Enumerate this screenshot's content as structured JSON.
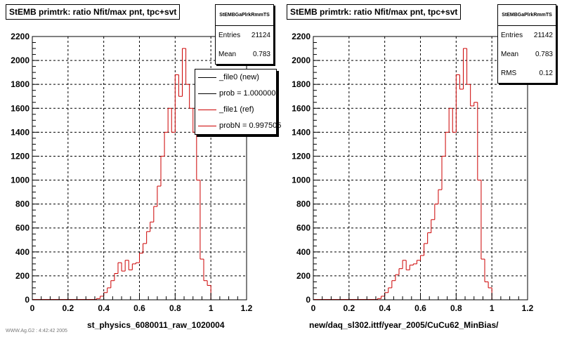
{
  "chart_data": [
    {
      "type": "histogram",
      "title": "StEMB primtrk: ratio Nfit/max pnt, tpc+svt",
      "xlabel": "st_physics_6080011_raw_1020004",
      "ylabel": "",
      "xlim": [
        0,
        1.2
      ],
      "ylim": [
        0,
        2200
      ],
      "xticks": [
        "0",
        "0.2",
        "0.4",
        "0.6",
        "0.8",
        "1",
        "1.2"
      ],
      "yticks": [
        "0",
        "200",
        "400",
        "600",
        "800",
        "1000",
        "1200",
        "1400",
        "1600",
        "1800",
        "2000",
        "2200"
      ],
      "grid": true,
      "bin_width": 0.02,
      "stats": {
        "name": "StEMBGaPlrkRmmTS",
        "entries_label": "Entries",
        "entries": "21124",
        "mean_label": "Mean",
        "mean": "0.783"
      },
      "legend": {
        "placement": "top-right",
        "items": [
          {
            "label": "_file0 (new)",
            "color": "#000000"
          },
          {
            "label": "prob = 1.000000",
            "color": "#000000"
          },
          {
            "label": "_file1 (ref)",
            "color": "#cc0000"
          },
          {
            "label": "probN = 0.997505",
            "color": "#cc0000"
          }
        ]
      },
      "series": [
        {
          "name": "_file1 (ref)",
          "color": "#cc0000",
          "x": [
            0.36,
            0.38,
            0.4,
            0.42,
            0.44,
            0.46,
            0.48,
            0.5,
            0.52,
            0.54,
            0.56,
            0.58,
            0.6,
            0.62,
            0.64,
            0.66,
            0.68,
            0.7,
            0.72,
            0.74,
            0.76,
            0.78,
            0.8,
            0.82,
            0.84,
            0.86,
            0.88,
            0.9,
            0.92,
            0.94,
            0.96,
            0.98
          ],
          "values": [
            10,
            30,
            60,
            100,
            160,
            220,
            310,
            240,
            330,
            250,
            300,
            310,
            390,
            470,
            570,
            650,
            780,
            950,
            1200,
            1400,
            1600,
            1400,
            1880,
            1700,
            2100,
            1800,
            1600,
            1400,
            1000,
            340,
            160,
            120
          ]
        }
      ]
    },
    {
      "type": "histogram",
      "title": "StEMB primtrk: ratio Nfit/max pnt, tpc+svt",
      "xlabel": "new/daq_sl302.ittf/year_2005/CuCu62_MinBias/",
      "ylabel": "",
      "xlim": [
        0,
        1.2
      ],
      "ylim": [
        0,
        2200
      ],
      "xticks": [
        "0",
        "0.2",
        "0.4",
        "0.6",
        "0.8",
        "1",
        "1.2"
      ],
      "yticks": [
        "0",
        "200",
        "400",
        "600",
        "800",
        "1000",
        "1200",
        "1400",
        "1600",
        "1800",
        "2000",
        "2200"
      ],
      "grid": true,
      "bin_width": 0.02,
      "stats": {
        "name": "StEMBGaPlrkRmmTS",
        "entries_label": "Entries",
        "entries": "21142",
        "mean_label": "Mean",
        "mean": "0.783",
        "rms_label": "RMS",
        "rms": "0.12"
      },
      "series": [
        {
          "name": "",
          "color": "#cc0000",
          "x": [
            0.36,
            0.38,
            0.4,
            0.42,
            0.44,
            0.46,
            0.48,
            0.5,
            0.52,
            0.54,
            0.56,
            0.58,
            0.6,
            0.62,
            0.64,
            0.66,
            0.68,
            0.7,
            0.72,
            0.74,
            0.76,
            0.78,
            0.8,
            0.82,
            0.84,
            0.86,
            0.88,
            0.9,
            0.92,
            0.94,
            0.96,
            0.98
          ],
          "values": [
            10,
            30,
            60,
            100,
            160,
            210,
            260,
            330,
            250,
            290,
            300,
            330,
            370,
            470,
            560,
            670,
            800,
            920,
            1200,
            1400,
            1600,
            1400,
            1880,
            1760,
            2100,
            1800,
            1620,
            1650,
            1000,
            340,
            150,
            100
          ]
        }
      ]
    }
  ],
  "footer": "WWW.Ag.G2 : 4:42:42 2005"
}
